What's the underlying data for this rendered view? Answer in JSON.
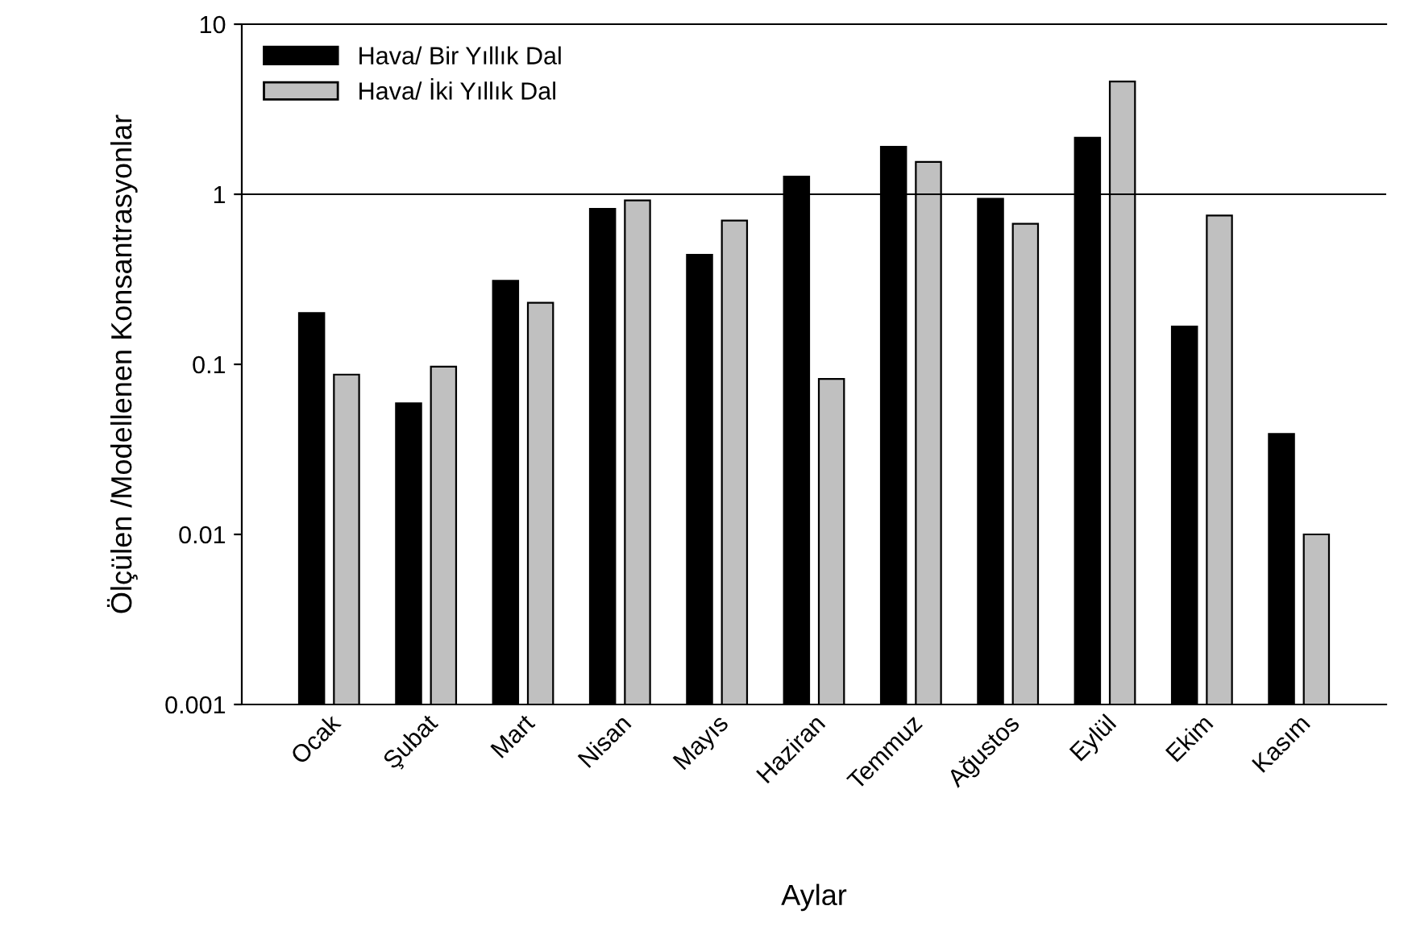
{
  "chart_data": {
    "type": "bar",
    "xlabel": "Aylar",
    "ylabel": "Ölçülen /Modellenen Konsantrasyonlar",
    "categories": [
      "Ocak",
      "Şubat",
      "Mart",
      "Nisan",
      "Mayıs",
      "Haziran",
      "Temmuz",
      "Ağustos",
      "Eylül",
      "Ekim",
      "Kasım"
    ],
    "series": [
      {
        "name": "Hava/ Bir Yıllık Dal",
        "color": "#000000",
        "values": [
          0.2,
          0.059,
          0.31,
          0.82,
          0.44,
          1.27,
          1.9,
          0.94,
          2.15,
          0.167,
          0.039
        ]
      },
      {
        "name": "Hava/ İki Yıllık Dal",
        "color": "#c0c0c0",
        "values": [
          0.087,
          0.097,
          0.23,
          0.92,
          0.7,
          0.082,
          1.55,
          0.67,
          4.6,
          0.75,
          0.01
        ]
      }
    ],
    "log": true,
    "ylim": [
      0.001,
      10
    ],
    "yticks": [
      0.001,
      0.01,
      0.1,
      1,
      10
    ],
    "ref_lines": [
      {
        "axis": "y",
        "value": 1,
        "color": "#000000"
      }
    ],
    "legend": "top left",
    "grid": false
  }
}
